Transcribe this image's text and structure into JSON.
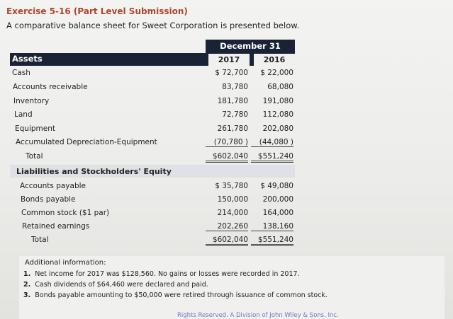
{
  "header": {
    "exercise_title": "Exercise 5-16 (Part Level Submission)",
    "description": "A comparative balance sheet for Sweet Corporation is presented below."
  },
  "table": {
    "date_header": "December 31",
    "assets_label": "Assets",
    "years": [
      "2017",
      "2016"
    ],
    "asset_rows": [
      {
        "label": "Cash",
        "v2017": "$ 72,700",
        "v2016": "$ 22,000"
      },
      {
        "label": "Accounts receivable",
        "v2017": "83,780",
        "v2016": "68,080"
      },
      {
        "label": "Inventory",
        "v2017": "181,780",
        "v2016": "191,080"
      },
      {
        "label": "Land",
        "v2017": "72,780",
        "v2016": "112,080"
      },
      {
        "label": "Equipment",
        "v2017": "261,780",
        "v2016": "202,080"
      },
      {
        "label": "Accumulated Depreciation-Equipment",
        "v2017": "(70,780 )",
        "v2016": "(44,080 )"
      },
      {
        "label": "Total",
        "v2017": "$602,040",
        "v2016": "$551,240"
      }
    ],
    "liabilities_label": "Liabilities and Stockholders' Equity",
    "liability_rows": [
      {
        "label": "Accounts payable",
        "v2017": "$ 35,780",
        "v2016": "$ 49,080"
      },
      {
        "label": "Bonds payable",
        "v2017": "150,000",
        "v2016": "200,000"
      },
      {
        "label": "Common stock ($1 par)",
        "v2017": "214,000",
        "v2016": "164,000"
      },
      {
        "label": "Retained earnings",
        "v2017": "202,260",
        "v2016": "138,160"
      },
      {
        "label": "Total",
        "v2017": "$602,040",
        "v2016": "$551,240"
      }
    ]
  },
  "info": {
    "title": "Additional information:",
    "items": [
      {
        "num": "1.",
        "text": "Net income for 2017 was $128,560. No gains or losses were recorded in 2017."
      },
      {
        "num": "2.",
        "text": "Cash dividends of $64,460 were declared and paid."
      },
      {
        "num": "3.",
        "text": "Bonds payable amounting to $50,000 were retired through issuance of common stock."
      }
    ]
  },
  "footer": {
    "copyright": "Rights Reserved. A Division of John Wiley & Sons, Inc."
  }
}
